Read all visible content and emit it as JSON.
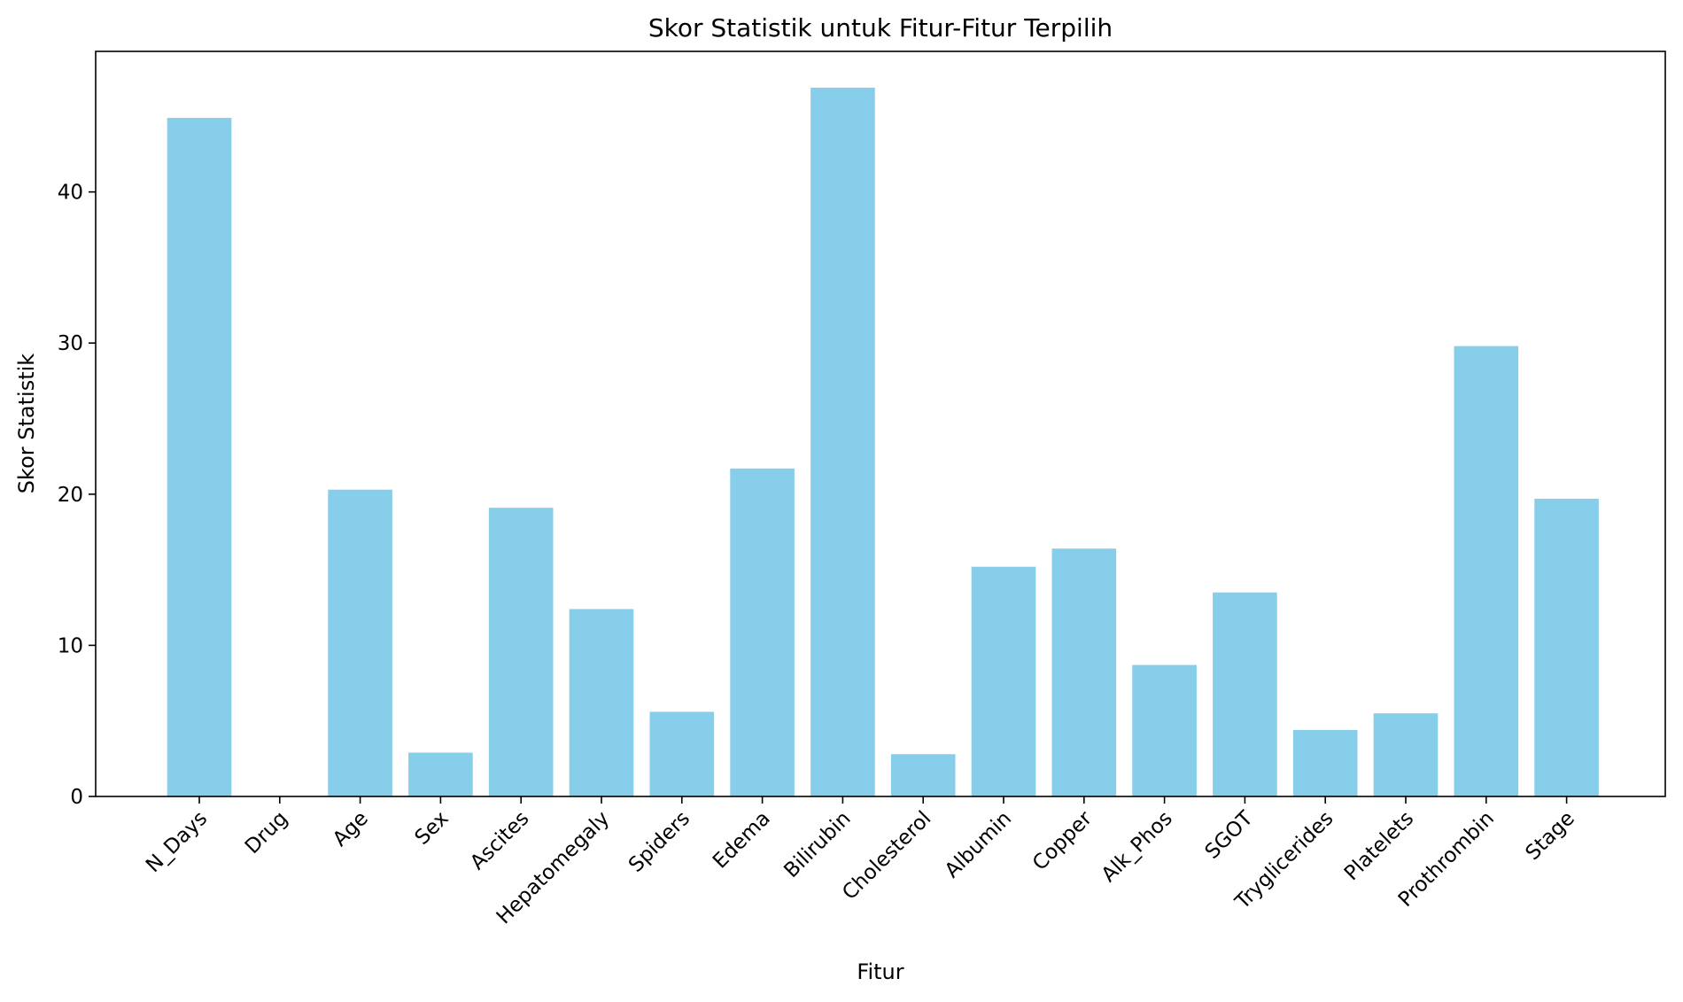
{
  "chart_data": {
    "type": "bar",
    "title": "Skor Statistik untuk Fitur-Fitur Terpilih",
    "xlabel": "Fitur",
    "ylabel": "Skor Statistik",
    "categories": [
      "N_Days",
      "Drug",
      "Age",
      "Sex",
      "Ascites",
      "Hepatomegaly",
      "Spiders",
      "Edema",
      "Bilirubin",
      "Cholesterol",
      "Albumin",
      "Copper",
      "Alk_Phos",
      "SGOT",
      "Tryglicerides",
      "Platelets",
      "Prothrombin",
      "Stage"
    ],
    "values": [
      44.9,
      0.0,
      20.3,
      2.9,
      19.1,
      12.4,
      5.6,
      21.7,
      46.9,
      2.8,
      15.2,
      16.4,
      8.7,
      13.5,
      4.4,
      5.5,
      29.8,
      19.7
    ],
    "ylim": [
      0,
      49.3
    ],
    "yticks": [
      0,
      10,
      20,
      30,
      40
    ],
    "grid": false,
    "bar_color": "#87CEEB",
    "tick_label_rotation": 45
  }
}
